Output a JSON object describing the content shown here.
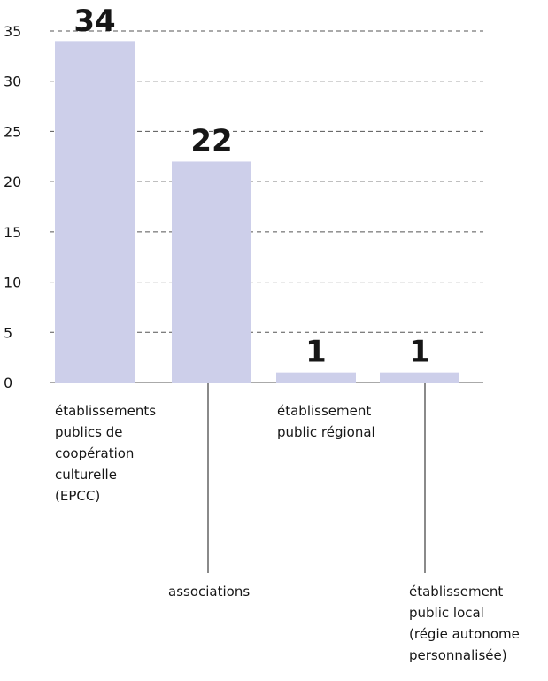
{
  "chart_data": {
    "type": "bar",
    "categories": [
      [
        "établissements",
        "publics de",
        "coopération",
        "culturelle",
        "(EPCC)"
      ],
      [
        "associations"
      ],
      [
        "établissement",
        "public régional"
      ],
      [
        "établissement",
        "public local",
        "(régie autonome",
        "personnalisée)"
      ]
    ],
    "values": [
      34,
      22,
      1,
      1
    ],
    "value_labels": [
      "34",
      "22",
      "1",
      "1"
    ],
    "yticks": [
      "0",
      "5",
      "10",
      "15",
      "20",
      "25",
      "30",
      "35"
    ],
    "ylim": [
      0,
      35
    ],
    "grid": true,
    "colors": {
      "bar": "#cdcfea",
      "grid": "#555555",
      "text": "#161616"
    }
  }
}
